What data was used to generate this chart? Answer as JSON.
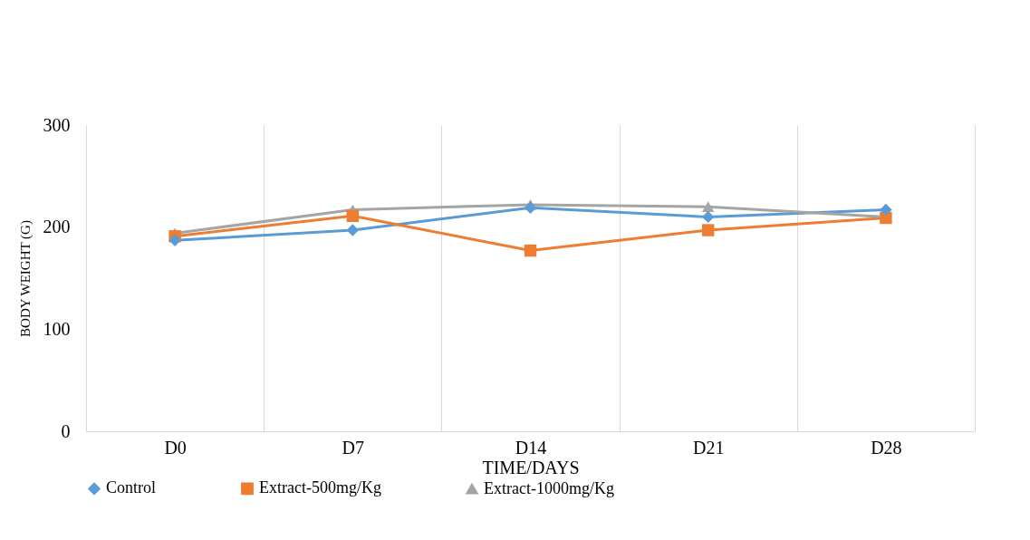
{
  "chart_data": {
    "type": "line",
    "xlabel": "TIME/DAYS",
    "ylabel": "BODY WEIGHT (G)",
    "categories": [
      "D0",
      "D7",
      "D14",
      "D21",
      "D28"
    ],
    "series": [
      {
        "name": "Control",
        "color": "#5b9bd5",
        "marker": "diamond",
        "values": [
          187,
          197,
          219,
          210,
          217
        ]
      },
      {
        "name": "Extract-500mg/Kg",
        "color": "#ed7d31",
        "marker": "square",
        "values": [
          191,
          211,
          177,
          197,
          209
        ]
      },
      {
        "name": "Extract-1000mg/Kg",
        "color": "#a5a5a5",
        "marker": "triangle",
        "values": [
          194,
          217,
          222,
          220,
          210
        ]
      }
    ],
    "ylim": [
      0,
      300
    ],
    "yticks": [
      0,
      100,
      200,
      300
    ],
    "grid": "x",
    "legend": "bottom"
  }
}
